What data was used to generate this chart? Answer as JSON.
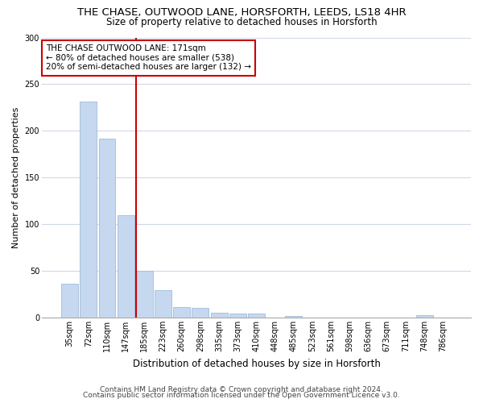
{
  "title": "THE CHASE, OUTWOOD LANE, HORSFORTH, LEEDS, LS18 4HR",
  "subtitle": "Size of property relative to detached houses in Horsforth",
  "xlabel": "Distribution of detached houses by size in Horsforth",
  "ylabel": "Number of detached properties",
  "categories": [
    "35sqm",
    "72sqm",
    "110sqm",
    "147sqm",
    "185sqm",
    "223sqm",
    "260sqm",
    "298sqm",
    "335sqm",
    "373sqm",
    "410sqm",
    "448sqm",
    "485sqm",
    "523sqm",
    "561sqm",
    "598sqm",
    "636sqm",
    "673sqm",
    "711sqm",
    "748sqm",
    "786sqm"
  ],
  "values": [
    36,
    231,
    192,
    110,
    50,
    29,
    11,
    10,
    5,
    4,
    4,
    0,
    2,
    0,
    0,
    0,
    0,
    0,
    0,
    3,
    0
  ],
  "bar_color": "#c5d8f0",
  "bar_edge_color": "#a0bcd8",
  "vline_color": "#cc0000",
  "annotation_text": "THE CHASE OUTWOOD LANE: 171sqm\n← 80% of detached houses are smaller (538)\n20% of semi-detached houses are larger (132) →",
  "annotation_box_color": "#ffffff",
  "annotation_box_edge": "#cc0000",
  "ylim": [
    0,
    300
  ],
  "yticks": [
    0,
    50,
    100,
    150,
    200,
    250,
    300
  ],
  "footer_line1": "Contains HM Land Registry data © Crown copyright and database right 2024.",
  "footer_line2": "Contains public sector information licensed under the Open Government Licence v3.0.",
  "bg_color": "#ffffff",
  "plot_bg_color": "#ffffff",
  "grid_color": "#d0d8e8",
  "title_fontsize": 9.5,
  "subtitle_fontsize": 8.5,
  "tick_fontsize": 7,
  "ylabel_fontsize": 8,
  "xlabel_fontsize": 8.5,
  "footer_fontsize": 6.5
}
